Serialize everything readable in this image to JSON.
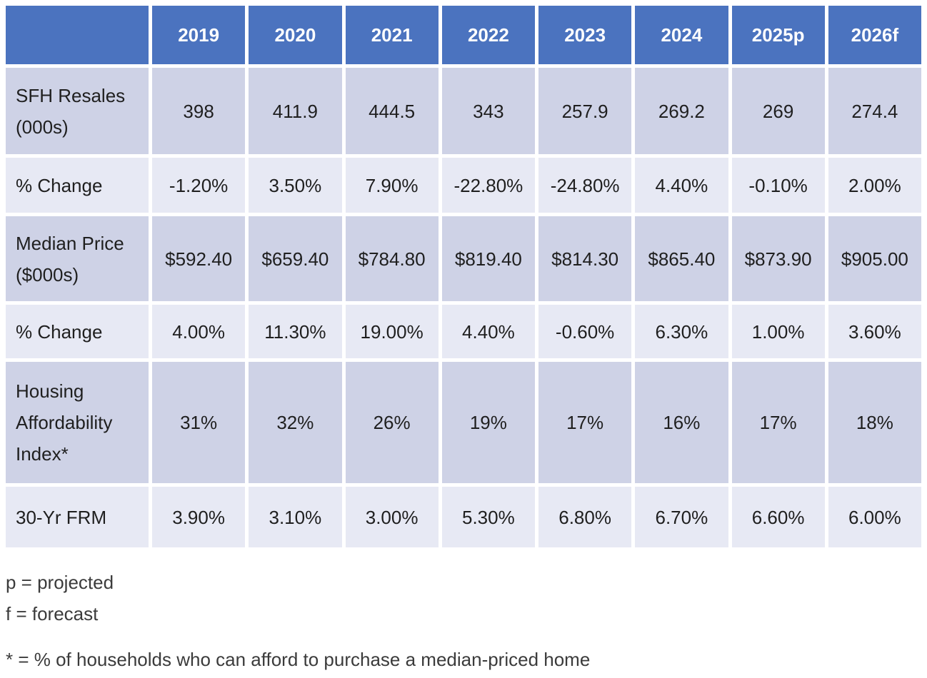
{
  "chart_data": {
    "type": "table",
    "columns": [
      "",
      "2019",
      "2020",
      "2021",
      "2022",
      "2023",
      "2024",
      "2025p",
      "2026f"
    ],
    "rows": [
      {
        "label": "SFH Resales (000s)",
        "values": [
          "398",
          "411.9",
          "444.5",
          "343",
          "257.9",
          "269.2",
          "269",
          "274.4"
        ]
      },
      {
        "label": "% Change",
        "values": [
          "-1.20%",
          "3.50%",
          "7.90%",
          "-22.80%",
          "-24.80%",
          "4.40%",
          "-0.10%",
          "2.00%"
        ]
      },
      {
        "label": "Median Price ($000s)",
        "values": [
          "$592.40",
          "$659.40",
          "$784.80",
          "$819.40",
          "$814.30",
          "$865.40",
          "$873.90",
          "$905.00"
        ]
      },
      {
        "label": "% Change",
        "values": [
          "4.00%",
          "11.30%",
          "19.00%",
          "4.40%",
          "-0.60%",
          "6.30%",
          "1.00%",
          "3.60%"
        ]
      },
      {
        "label": "Housing Affordability Index*",
        "values": [
          "31%",
          "32%",
          "26%",
          "19%",
          "17%",
          "16%",
          "17%",
          "18%"
        ]
      },
      {
        "label": "30-Yr FRM",
        "values": [
          "3.90%",
          "3.10%",
          "3.00%",
          "5.30%",
          "6.80%",
          "6.70%",
          "6.60%",
          "6.00%"
        ]
      }
    ],
    "layout": {
      "banded_rows": true,
      "header_position": "top"
    }
  },
  "footnotes": {
    "projected": "p = projected",
    "forecast": "f = forecast",
    "affordability": "* = % of households who can afford to purchase a median-priced home"
  },
  "colors": {
    "header_bg": "#4B73BF",
    "row_dark": "#CED2E6",
    "row_light": "#E7E9F4",
    "header_text": "#FFFFFF",
    "body_text": "#1F1F1F",
    "footnote_text": "#3B3B3B"
  }
}
